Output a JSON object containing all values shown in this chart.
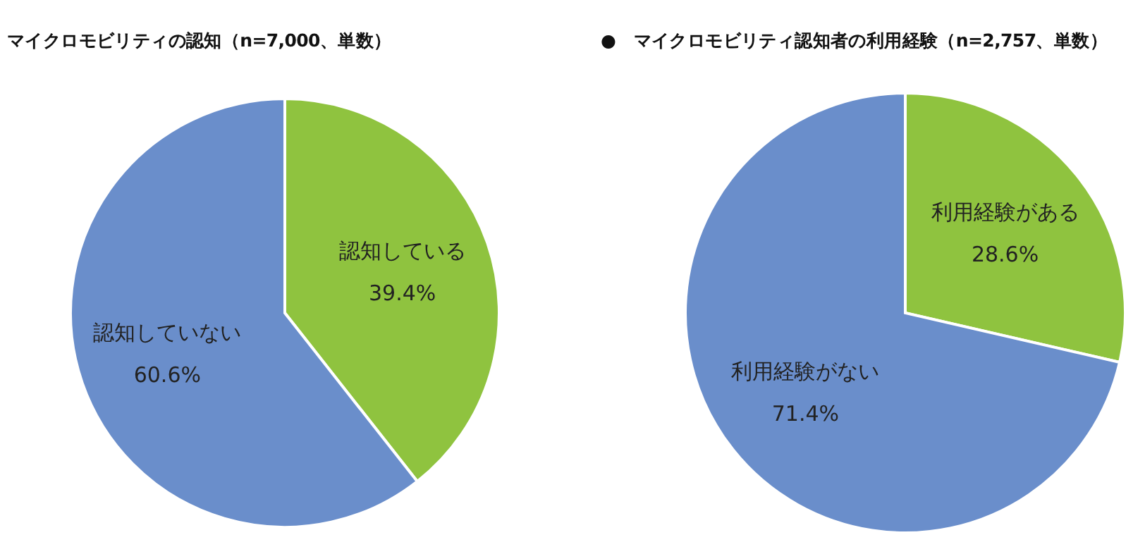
{
  "chart_data": [
    {
      "type": "pie",
      "title": "マイクロモビリティの認知（n=7,000、単数）",
      "categories": [
        "認知している",
        "認知していない"
      ],
      "values": [
        39.4,
        60.6
      ],
      "value_labels": [
        "39.4%",
        "60.6%"
      ],
      "colors": [
        "#8fc33f",
        "#6a8ecb"
      ],
      "legend": false
    },
    {
      "type": "pie",
      "title": "●　マイクロモビリティ認知者の利用経験（n=2,757、単数）",
      "categories": [
        "利用経験がある",
        "利用経験がない"
      ],
      "values": [
        28.6,
        71.4
      ],
      "value_labels": [
        "28.6%",
        "71.4%"
      ],
      "colors": [
        "#8fc33f",
        "#6a8ecb"
      ],
      "legend": false
    }
  ]
}
